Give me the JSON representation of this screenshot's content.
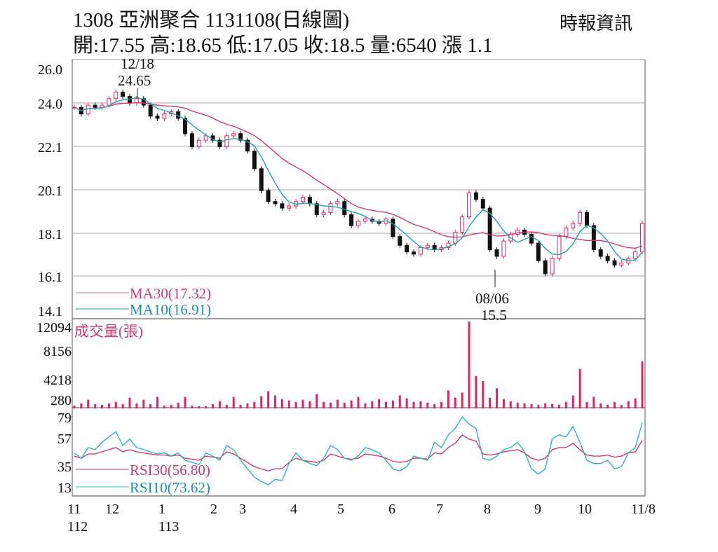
{
  "header": {
    "title": "1308  亞洲聚合 1131108(日線圖)",
    "quote": "開:17.55 高:18.65 低:17.05 收:18.5 量:6540 漲 1.1",
    "source": "時報資訊"
  },
  "colors": {
    "up": "#e2245a",
    "down": "#111111",
    "ma30": "#d23a6c",
    "ma10": "#1fa0ad",
    "volume": "#e2245a",
    "rsi30": "#d23a6c",
    "rsi10": "#2fb3bd"
  },
  "chart_data": [
    {
      "type": "candlestick",
      "panel": "price",
      "y_ticks": [
        "26.0",
        "24.0",
        "22.1",
        "20.1",
        "18.1",
        "16.1",
        "14.1"
      ],
      "ylim": [
        14.1,
        26.0
      ],
      "grid": true,
      "x_ticks": [
        {
          "label": "11",
          "sub": "112"
        },
        {
          "label": "12",
          "sub": ""
        },
        {
          "label": "1",
          "sub": "113"
        },
        {
          "label": "2",
          "sub": ""
        },
        {
          "label": "3",
          "sub": ""
        },
        {
          "label": "4",
          "sub": ""
        },
        {
          "label": "5",
          "sub": ""
        },
        {
          "label": "6",
          "sub": ""
        },
        {
          "label": "7",
          "sub": ""
        },
        {
          "label": "8",
          "sub": ""
        },
        {
          "label": "9",
          "sub": ""
        },
        {
          "label": "10",
          "sub": ""
        },
        {
          "label": "11/8",
          "sub": ""
        }
      ],
      "close": [
        23.8,
        23.5,
        23.9,
        23.8,
        23.9,
        24.2,
        24.5,
        24.3,
        24.0,
        24.2,
        23.9,
        23.4,
        23.3,
        23.5,
        23.6,
        23.3,
        22.6,
        22.0,
        22.3,
        22.5,
        22.3,
        22.0,
        22.5,
        22.6,
        22.3,
        21.8,
        21.0,
        20.0,
        19.5,
        19.4,
        19.2,
        19.3,
        19.5,
        19.7,
        19.4,
        18.9,
        19.0,
        19.4,
        19.5,
        18.9,
        18.4,
        18.6,
        18.7,
        18.6,
        18.5,
        18.7,
        17.9,
        17.5,
        17.2,
        17.1,
        17.4,
        17.5,
        17.3,
        17.4,
        17.6,
        18.1,
        18.8,
        19.9,
        19.6,
        19.2,
        17.3,
        17.0,
        17.7,
        18.0,
        18.2,
        18.0,
        17.6,
        16.8,
        16.2,
        16.9,
        17.9,
        18.3,
        18.5,
        19.0,
        18.4,
        17.3,
        17.0,
        16.8,
        16.6,
        16.7,
        16.9,
        17.2,
        18.5
      ],
      "annotations": [
        {
          "date": "12/18",
          "value": "24.65",
          "kind": "high"
        },
        {
          "date": "08/06",
          "value": "15.5",
          "kind": "low"
        }
      ],
      "legend": [
        {
          "name": "MA30(17.32)",
          "color": "#d23a6c"
        },
        {
          "name": "MA10(16.91)",
          "color": "#1fa0ad"
        }
      ]
    },
    {
      "type": "bar",
      "panel": "volume",
      "title": "成交量(張)",
      "y_ticks": [
        "12094",
        "8156",
        "4218",
        "280"
      ],
      "ylim": [
        0,
        12094
      ],
      "values": [
        400,
        700,
        1200,
        600,
        500,
        700,
        900,
        600,
        1500,
        700,
        1200,
        600,
        1600,
        400,
        500,
        800,
        1600,
        400,
        300,
        300,
        600,
        1000,
        500,
        1600,
        500,
        700,
        900,
        1700,
        2400,
        1800,
        1300,
        1100,
        900,
        1200,
        1000,
        2000,
        900,
        800,
        1200,
        800,
        1100,
        1600,
        700,
        1000,
        1300,
        900,
        1100,
        1800,
        1400,
        900,
        1000,
        800,
        600,
        900,
        2500,
        1500,
        2200,
        12094,
        4500,
        3800,
        1500,
        2800,
        1300,
        1000,
        800,
        700,
        600,
        500,
        700,
        600,
        500,
        900,
        1800,
        5500,
        900,
        1600,
        700,
        500,
        900,
        500,
        1000,
        1400,
        6540
      ]
    },
    {
      "type": "line",
      "panel": "rsi",
      "y_ticks": [
        "79",
        "57",
        "35",
        "13"
      ],
      "ylim": [
        5,
        88
      ],
      "series": [
        {
          "name": "RSI30(56.80)",
          "color": "#d23a6c",
          "values": [
            42,
            40,
            44,
            44,
            46,
            48,
            50,
            46,
            48,
            46,
            45,
            44,
            43,
            43,
            42,
            43,
            40,
            39,
            38,
            42,
            41,
            40,
            46,
            44,
            40,
            36,
            32,
            30,
            28,
            30,
            30,
            36,
            40,
            38,
            37,
            36,
            38,
            44,
            42,
            40,
            39,
            40,
            44,
            43,
            42,
            40,
            37,
            36,
            37,
            40,
            40,
            39,
            45,
            44,
            50,
            54,
            62,
            58,
            56,
            44,
            43,
            44,
            46,
            47,
            48,
            45,
            40,
            38,
            40,
            48,
            50,
            50,
            54,
            48,
            43,
            42,
            42,
            43,
            41,
            42,
            45,
            46,
            56.8
          ]
        },
        {
          "name": "RSI10(73.62)",
          "color": "#2fb3bd",
          "values": [
            45,
            40,
            50,
            48,
            55,
            60,
            65,
            52,
            58,
            50,
            48,
            46,
            44,
            45,
            42,
            45,
            38,
            36,
            34,
            45,
            42,
            38,
            52,
            48,
            38,
            30,
            22,
            18,
            15,
            20,
            19,
            35,
            45,
            38,
            35,
            33,
            40,
            52,
            48,
            40,
            38,
            42,
            50,
            48,
            45,
            38,
            30,
            28,
            32,
            42,
            40,
            38,
            55,
            50,
            62,
            68,
            79,
            72,
            68,
            40,
            38,
            42,
            48,
            50,
            55,
            46,
            30,
            25,
            30,
            58,
            62,
            60,
            70,
            55,
            38,
            35,
            35,
            38,
            30,
            32,
            45,
            50,
            73.62
          ]
        }
      ]
    }
  ]
}
